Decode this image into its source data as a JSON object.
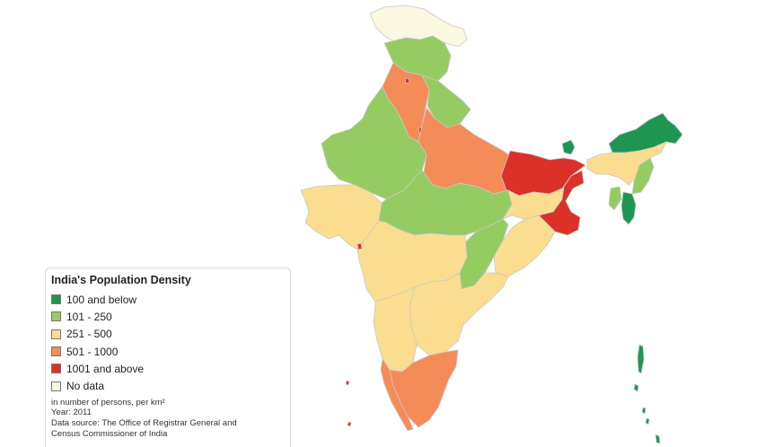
{
  "colors": {
    "below_100": "#1e9652",
    "r101_250": "#95cc62",
    "r251_500": "#fbdd8f",
    "r501_1000": "#f58c57",
    "above_1001": "#dc3129",
    "no_data": "#fbf8e1",
    "border": "#c8c8c8"
  },
  "legend": {
    "title": "India's Population Density",
    "items": [
      {
        "label": "100 and below",
        "color": "#1e9652"
      },
      {
        "label": "101 - 250",
        "color": "#95cc62"
      },
      {
        "label": "251 - 500",
        "color": "#fbdd8f"
      },
      {
        "label": "501 - 1000",
        "color": "#f58c57"
      },
      {
        "label": "1001 and above",
        "color": "#dc3129"
      },
      {
        "label": "No data",
        "color": "#fbf8e1"
      }
    ],
    "unit_note": "in number of persons, per km²",
    "year_note": "Year: 2011",
    "source_line1": "Data source: The Office of Registrar General and",
    "source_line2": "Census Commissioner of India"
  }
}
